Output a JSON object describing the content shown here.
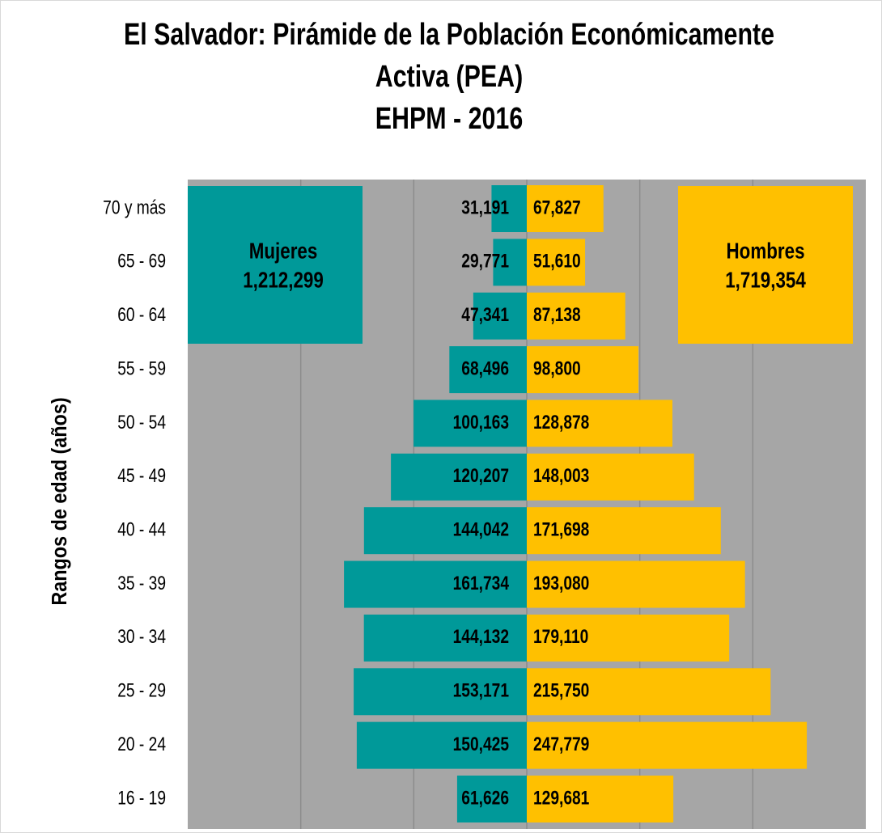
{
  "chart_data": {
    "type": "pyramid",
    "title": [
      "El Salvador: Pirámide de la Población Económicamente",
      "Activa (PEA)",
      "EHPM - 2016"
    ],
    "y_axis_label": "Rangos de edad (años)",
    "categories": [
      "70 y más",
      "65 - 69",
      "60 - 64",
      "55 - 59",
      "50 - 54",
      "45 - 49",
      "40 - 44",
      "35 - 39",
      "30 - 34",
      "25 - 29",
      "20 - 24",
      "16 - 19"
    ],
    "xlim": [
      -300000,
      300000
    ],
    "xticks": [
      -200000,
      -100000,
      0,
      100000,
      200000
    ],
    "grid": true,
    "series": [
      {
        "name": "Mujeres",
        "side": "left",
        "color": "#009999",
        "total": 1212299,
        "total_label": "1,212,299",
        "values": [
          31191,
          29771,
          47341,
          68496,
          100163,
          120207,
          144042,
          161734,
          144132,
          153171,
          150425,
          61626
        ],
        "value_labels": [
          "31,191",
          "29,771",
          "47,341",
          "68,496",
          "100,163",
          "120,207",
          "144,042",
          "161,734",
          "144,132",
          "153,171",
          "150,425",
          "61,626"
        ]
      },
      {
        "name": "Hombres",
        "side": "right",
        "color": "#FFC000",
        "total": 1719354,
        "total_label": "1,719,354",
        "values": [
          67827,
          51610,
          87138,
          98800,
          128878,
          148003,
          171698,
          193080,
          179110,
          215750,
          247779,
          129681
        ],
        "value_labels": [
          "67,827",
          "51,610",
          "87,138",
          "98,800",
          "128,878",
          "148,003",
          "171,698",
          "193,080",
          "179,110",
          "215,750",
          "247,779",
          "129,681"
        ]
      }
    ]
  }
}
